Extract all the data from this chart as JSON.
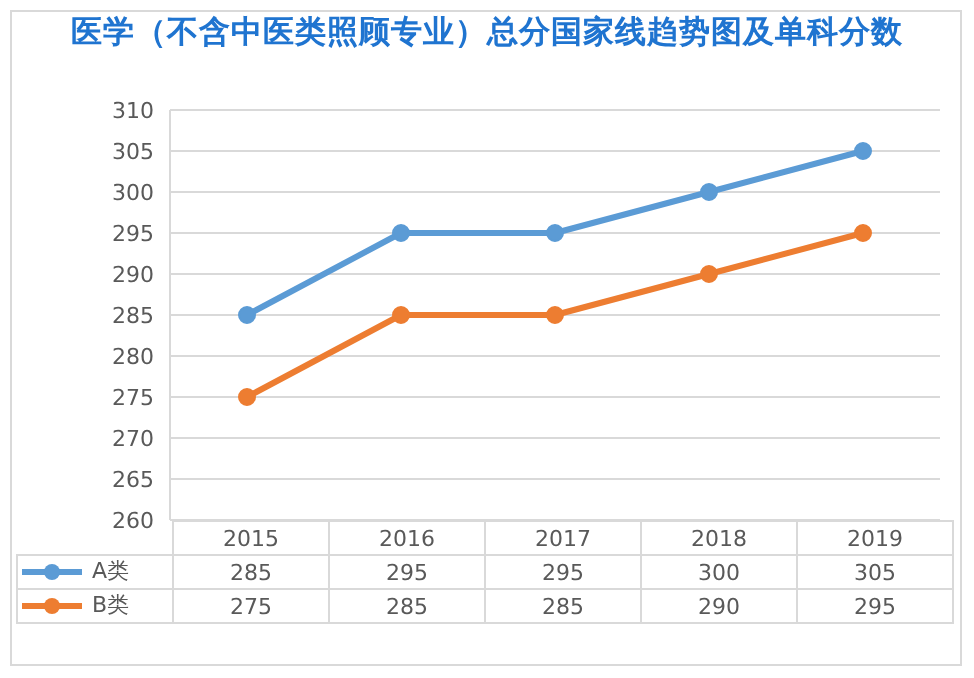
{
  "chart_data": {
    "type": "line",
    "title": "医学（不含中医类照顾专业）总分国家线趋势图及单科分数",
    "categories": [
      "2015",
      "2016",
      "2017",
      "2018",
      "2019"
    ],
    "series": [
      {
        "name": "A类",
        "color": "#5b9bd5",
        "values": [
          285,
          295,
          295,
          300,
          305
        ]
      },
      {
        "name": "B类",
        "color": "#ed7d31",
        "values": [
          275,
          285,
          285,
          290,
          295
        ]
      }
    ],
    "ylim": [
      260,
      310
    ],
    "yticks": [
      260,
      265,
      270,
      275,
      280,
      285,
      290,
      295,
      300,
      305,
      310
    ],
    "grid": "y",
    "legend": "bottom",
    "marker": "circle",
    "data_labels": true
  }
}
